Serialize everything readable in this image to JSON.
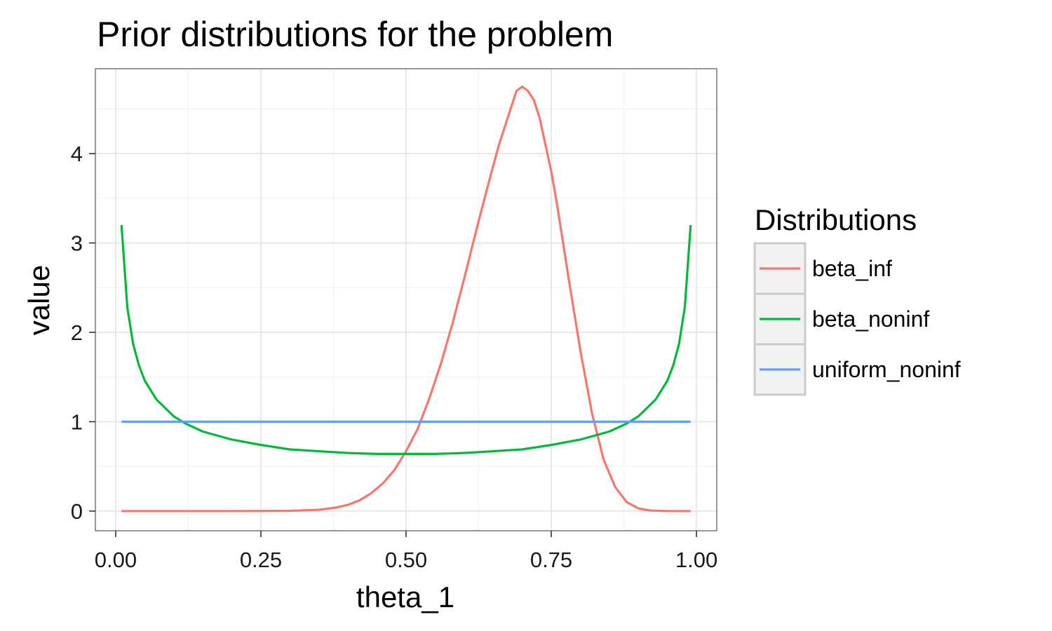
{
  "chart_data": {
    "type": "line",
    "title": "Prior distributions for the problem",
    "xlabel": "theta_1",
    "ylabel": "value",
    "xlim": [
      -0.035,
      1.035
    ],
    "ylim": [
      -0.22,
      4.95
    ],
    "x_ticks": [
      0.0,
      0.25,
      0.5,
      0.75,
      1.0
    ],
    "x_tick_labels": [
      "0.00",
      "0.25",
      "0.50",
      "0.75",
      "1.00"
    ],
    "y_ticks": [
      0,
      1,
      2,
      3,
      4
    ],
    "y_tick_labels": [
      "0",
      "1",
      "2",
      "3",
      "4"
    ],
    "grid": true,
    "legend": {
      "title": "Distributions",
      "placement": "right"
    },
    "series": [
      {
        "name": "beta_inf",
        "color": "#F8766D",
        "points": [
          [
            0.01,
            0.0
          ],
          [
            0.1,
            0.0
          ],
          [
            0.2,
            0.0
          ],
          [
            0.3,
            0.003
          ],
          [
            0.35,
            0.015
          ],
          [
            0.38,
            0.04
          ],
          [
            0.4,
            0.07
          ],
          [
            0.42,
            0.12
          ],
          [
            0.44,
            0.2
          ],
          [
            0.46,
            0.31
          ],
          [
            0.48,
            0.46
          ],
          [
            0.5,
            0.67
          ],
          [
            0.52,
            0.92
          ],
          [
            0.54,
            1.26
          ],
          [
            0.56,
            1.65
          ],
          [
            0.58,
            2.1
          ],
          [
            0.6,
            2.6
          ],
          [
            0.62,
            3.12
          ],
          [
            0.64,
            3.62
          ],
          [
            0.66,
            4.1
          ],
          [
            0.67,
            4.3
          ],
          [
            0.68,
            4.5
          ],
          [
            0.69,
            4.7
          ],
          [
            0.7,
            4.75
          ],
          [
            0.71,
            4.7
          ],
          [
            0.72,
            4.6
          ],
          [
            0.73,
            4.4
          ],
          [
            0.74,
            4.1
          ],
          [
            0.75,
            3.8
          ],
          [
            0.76,
            3.43
          ],
          [
            0.78,
            2.6
          ],
          [
            0.8,
            1.8
          ],
          [
            0.82,
            1.1
          ],
          [
            0.84,
            0.58
          ],
          [
            0.86,
            0.27
          ],
          [
            0.88,
            0.1
          ],
          [
            0.9,
            0.03
          ],
          [
            0.92,
            0.007
          ],
          [
            0.95,
            0.0
          ],
          [
            0.99,
            0.0
          ]
        ]
      },
      {
        "name": "beta_noninf",
        "color": "#00BA38",
        "points": [
          [
            0.01,
            3.2
          ],
          [
            0.02,
            2.28
          ],
          [
            0.03,
            1.87
          ],
          [
            0.04,
            1.63
          ],
          [
            0.05,
            1.46
          ],
          [
            0.07,
            1.25
          ],
          [
            0.1,
            1.06
          ],
          [
            0.12,
            0.98
          ],
          [
            0.15,
            0.89
          ],
          [
            0.2,
            0.8
          ],
          [
            0.25,
            0.74
          ],
          [
            0.3,
            0.69
          ],
          [
            0.35,
            0.67
          ],
          [
            0.4,
            0.65
          ],
          [
            0.45,
            0.64
          ],
          [
            0.5,
            0.64
          ],
          [
            0.55,
            0.64
          ],
          [
            0.6,
            0.65
          ],
          [
            0.65,
            0.67
          ],
          [
            0.7,
            0.69
          ],
          [
            0.75,
            0.74
          ],
          [
            0.8,
            0.8
          ],
          [
            0.85,
            0.89
          ],
          [
            0.88,
            0.98
          ],
          [
            0.9,
            1.06
          ],
          [
            0.93,
            1.25
          ],
          [
            0.95,
            1.46
          ],
          [
            0.96,
            1.63
          ],
          [
            0.97,
            1.87
          ],
          [
            0.98,
            2.28
          ],
          [
            0.99,
            3.2
          ]
        ]
      },
      {
        "name": "uniform_noninf",
        "color": "#619CFF",
        "points": [
          [
            0.01,
            1.0
          ],
          [
            0.99,
            1.0
          ]
        ]
      }
    ]
  }
}
